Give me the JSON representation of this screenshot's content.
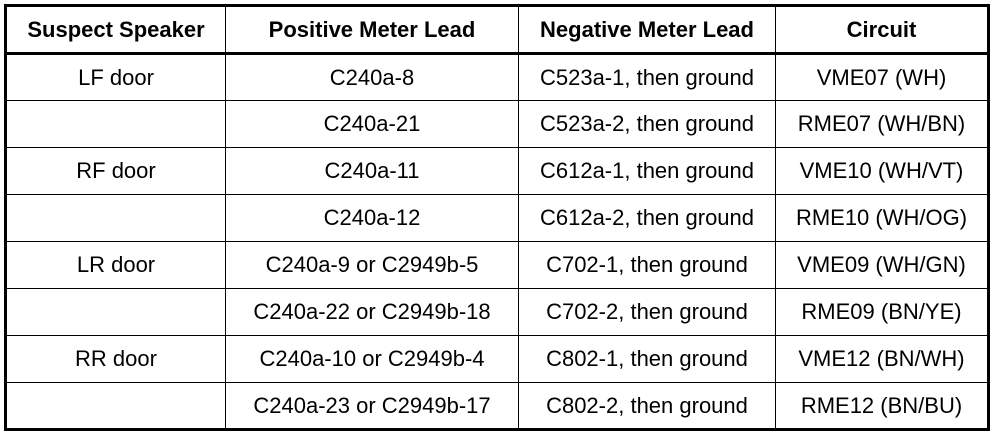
{
  "table": {
    "headers": [
      "Suspect Speaker",
      "Positive Meter Lead",
      "Negative Meter Lead",
      "Circuit"
    ],
    "rows": [
      [
        "LF door",
        "C240a-8",
        "C523a-1, then ground",
        "VME07 (WH)"
      ],
      [
        "",
        "C240a-21",
        "C523a-2, then ground",
        "RME07 (WH/BN)"
      ],
      [
        "RF door",
        "C240a-11",
        "C612a-1, then ground",
        "VME10 (WH/VT)"
      ],
      [
        "",
        "C240a-12",
        "C612a-2, then ground",
        "RME10 (WH/OG)"
      ],
      [
        "LR door",
        "C240a-9 or C2949b-5",
        "C702-1, then ground",
        "VME09 (WH/GN)"
      ],
      [
        "",
        "C240a-22 or C2949b-18",
        "C702-2, then ground",
        "RME09 (BN/YE)"
      ],
      [
        "RR door",
        "C240a-10 or C2949b-4",
        "C802-1, then ground",
        "VME12 (BN/WH)"
      ],
      [
        "",
        "C240a-23 or C2949b-17",
        "C802-2, then ground",
        "RME12 (BN/BU)"
      ]
    ]
  }
}
